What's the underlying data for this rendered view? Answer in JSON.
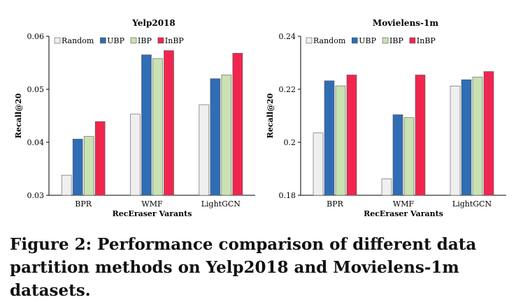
{
  "chart_data": [
    {
      "type": "bar",
      "title": "Yelp2018",
      "xlabel": "RecEraser Varants",
      "ylabel": "Recall@20",
      "categories": [
        "BPR",
        "WMF",
        "LightGCN"
      ],
      "ylim": [
        0.03,
        0.06
      ],
      "yticks": [
        0.03,
        0.04,
        0.05,
        0.06
      ],
      "ytick_labels": [
        "0.03",
        "0.04",
        "0.05",
        "0.06"
      ],
      "series": [
        {
          "name": "Random",
          "color": "#efefef",
          "values": [
            0.0338,
            0.0453,
            0.0471
          ]
        },
        {
          "name": "UBP",
          "color": "#2f6db5",
          "values": [
            0.0406,
            0.0565,
            0.052
          ]
        },
        {
          "name": "IBP",
          "color": "#c9e2b1",
          "values": [
            0.0411,
            0.0558,
            0.0527
          ]
        },
        {
          "name": "InBP",
          "color": "#f0264f",
          "values": [
            0.0439,
            0.0573,
            0.0568
          ]
        }
      ]
    },
    {
      "type": "bar",
      "title": "Movielens-1m",
      "xlabel": "RecEraser Varants",
      "ylabel": "Recall@20",
      "categories": [
        "BPR",
        "WMF",
        "LightGCN"
      ],
      "ylim": [
        0.18,
        0.24
      ],
      "yticks": [
        0.18,
        0.2,
        0.22,
        0.24
      ],
      "ytick_labels": [
        "0.18",
        "0.2",
        "0.22",
        "0.24"
      ],
      "series": [
        {
          "name": "Random",
          "color": "#efefef",
          "values": [
            0.2035,
            0.1862,
            0.2212
          ]
        },
        {
          "name": "UBP",
          "color": "#2f6db5",
          "values": [
            0.2232,
            0.2104,
            0.2236
          ]
        },
        {
          "name": "IBP",
          "color": "#c9e2b1",
          "values": [
            0.2213,
            0.2093,
            0.2246
          ]
        },
        {
          "name": "InBP",
          "color": "#f0264f",
          "values": [
            0.2254,
            0.2254,
            0.2267
          ]
        }
      ]
    }
  ],
  "caption": {
    "label": "Figure 2:",
    "text": "Performance comparison of different data partition methods on Yelp2018 and Movielens-1m datasets."
  }
}
